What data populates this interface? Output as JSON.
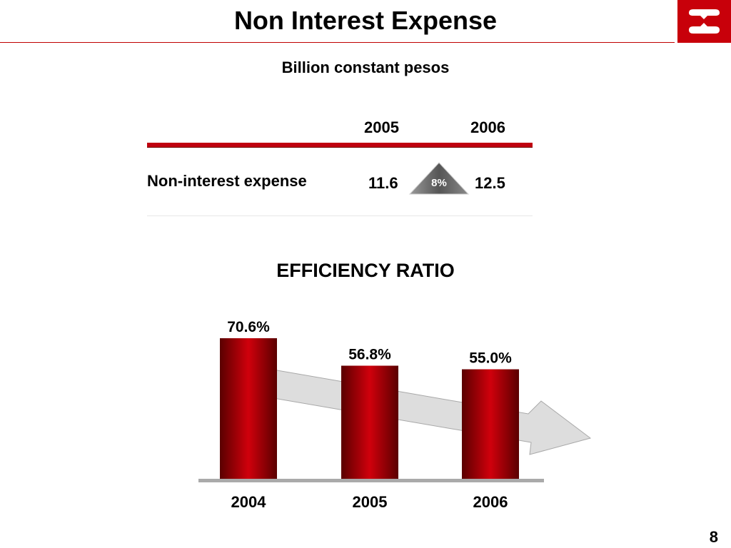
{
  "slide": {
    "title": "Non Interest Expense",
    "subtitle": "Billion constant pesos",
    "page_number": "8"
  },
  "table": {
    "years": [
      "2005",
      "2006"
    ],
    "row_label": "Non-interest expense",
    "values": [
      "11.6",
      "12.5"
    ],
    "growth": "8%"
  },
  "colors": {
    "accent": "#c8000a",
    "bar_dark": "#5a0000",
    "bar_mid": "#d0000c",
    "arrow_fill": "#dddddd",
    "growth_badge": "#777777"
  },
  "chart_data": {
    "type": "bar",
    "title": "EFFICIENCY RATIO",
    "categories": [
      "2004",
      "2005",
      "2006"
    ],
    "values": [
      70.6,
      56.8,
      55.0
    ],
    "value_labels": [
      "70.6%",
      "56.8%",
      "55.0%"
    ],
    "ylim": [
      0,
      70.6
    ],
    "grid": false,
    "legend": "none",
    "annotation": "downward trend arrow"
  }
}
